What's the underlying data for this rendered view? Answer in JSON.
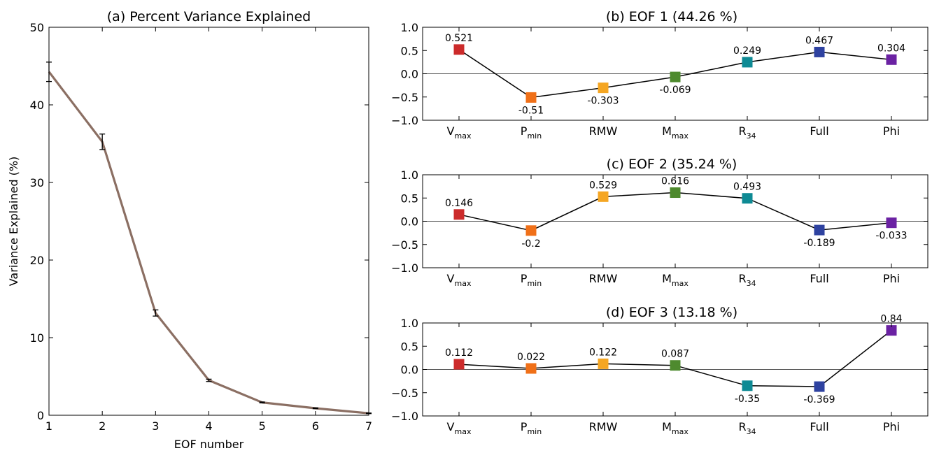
{
  "chart_data": [
    {
      "type": "line",
      "title": "(a) Percent Variance Explained",
      "xlabel": "EOF number",
      "ylabel": "Variance Explained (%)",
      "xlim": [
        1,
        7
      ],
      "ylim": [
        0,
        50
      ],
      "x": [
        1,
        2,
        3,
        4,
        5,
        6,
        7
      ],
      "xticks": [
        "1",
        "2",
        "3",
        "4",
        "5",
        "6",
        "7"
      ],
      "yticks": [
        "0",
        "10",
        "20",
        "30",
        "40",
        "50"
      ],
      "series": [
        {
          "values": [
            44.26,
            35.24,
            13.18,
            4.5,
            1.65,
            0.9,
            0.25
          ],
          "error": [
            1.25,
            1.0,
            0.4,
            0.15,
            0.06,
            0.05,
            0.04
          ],
          "color": "#8b6f63"
        }
      ],
      "grid": false
    },
    {
      "type": "line",
      "title": "(b) EOF 1 (44.26 %)",
      "ylim": [
        -1.0,
        1.0
      ],
      "yticks": [
        "1.0",
        "0.5",
        "0.0",
        "−0.5",
        "−1.0"
      ],
      "categories": [
        {
          "main": "V",
          "sub": "max"
        },
        {
          "main": "P",
          "sub": "min"
        },
        {
          "main": "RMW",
          "sub": ""
        },
        {
          "main": "M",
          "sub": "max"
        },
        {
          "main": "R",
          "sub": "34"
        },
        {
          "main": "Full",
          "sub": ""
        },
        {
          "main": "Phi",
          "sub": ""
        }
      ],
      "values": [
        0.521,
        -0.51,
        -0.303,
        -0.069,
        0.249,
        0.467,
        0.304
      ],
      "labels": [
        "0.521",
        "-0.51",
        "-0.303",
        "-0.069",
        "0.249",
        "0.467",
        "0.304"
      ],
      "marker_colors": [
        "#cc2b2b",
        "#f07018",
        "#f5a623",
        "#4e8a2e",
        "#0e8a94",
        "#2e42a0",
        "#6b22a3"
      ],
      "grid": false
    },
    {
      "type": "line",
      "title": "(c) EOF 2 (35.24 %)",
      "ylim": [
        -1.0,
        1.0
      ],
      "yticks": [
        "1.0",
        "0.5",
        "0.0",
        "−0.5",
        "−1.0"
      ],
      "categories": [
        {
          "main": "V",
          "sub": "max"
        },
        {
          "main": "P",
          "sub": "min"
        },
        {
          "main": "RMW",
          "sub": ""
        },
        {
          "main": "M",
          "sub": "max"
        },
        {
          "main": "R",
          "sub": "34"
        },
        {
          "main": "Full",
          "sub": ""
        },
        {
          "main": "Phi",
          "sub": ""
        }
      ],
      "values": [
        0.146,
        -0.2,
        0.529,
        0.616,
        0.493,
        -0.189,
        -0.033
      ],
      "labels": [
        "0.146",
        "-0.2",
        "0.529",
        "0.616",
        "0.493",
        "-0.189",
        "-0.033"
      ],
      "marker_colors": [
        "#cc2b2b",
        "#f07018",
        "#f5a623",
        "#4e8a2e",
        "#0e8a94",
        "#2e42a0",
        "#6b22a3"
      ],
      "grid": false
    },
    {
      "type": "line",
      "title": "(d) EOF 3 (13.18 %)",
      "ylim": [
        -1.0,
        1.0
      ],
      "yticks": [
        "1.0",
        "0.5",
        "0.0",
        "−0.5",
        "−1.0"
      ],
      "categories": [
        {
          "main": "V",
          "sub": "max"
        },
        {
          "main": "P",
          "sub": "min"
        },
        {
          "main": "RMW",
          "sub": ""
        },
        {
          "main": "M",
          "sub": "max"
        },
        {
          "main": "R",
          "sub": "34"
        },
        {
          "main": "Full",
          "sub": ""
        },
        {
          "main": "Phi",
          "sub": ""
        }
      ],
      "values": [
        0.112,
        0.022,
        0.122,
        0.087,
        -0.35,
        -0.369,
        0.84
      ],
      "labels": [
        "0.112",
        "0.022",
        "0.122",
        "0.087",
        "-0.35",
        "-0.369",
        "0.84"
      ],
      "marker_colors": [
        "#cc2b2b",
        "#f07018",
        "#f5a623",
        "#4e8a2e",
        "#0e8a94",
        "#2e42a0",
        "#6b22a3"
      ],
      "grid": false
    }
  ]
}
